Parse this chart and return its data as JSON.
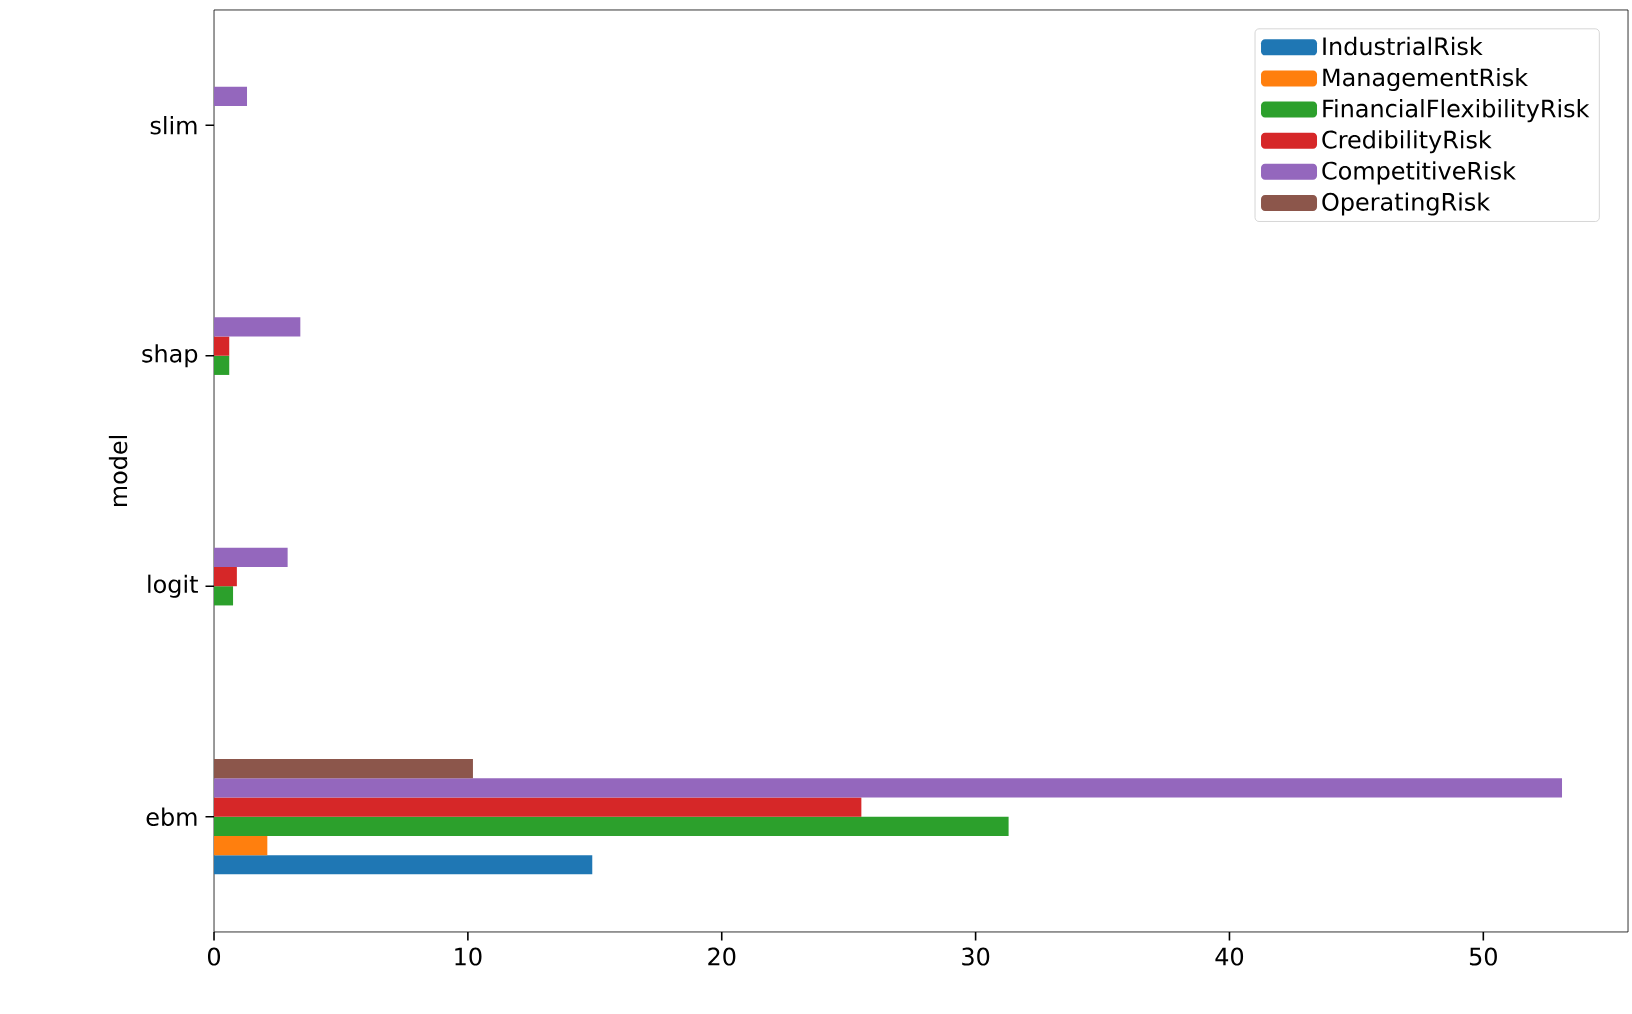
{
  "chart_data": {
    "type": "bar",
    "orientation": "horizontal",
    "ylabel": "model",
    "categories": [
      "slim",
      "shap",
      "logit",
      "ebm"
    ],
    "series": [
      {
        "name": "IndustrialRisk",
        "color": "#1f77b4",
        "values": [
          0,
          0,
          0,
          14.9
        ]
      },
      {
        "name": "ManagementRisk",
        "color": "#ff7f0e",
        "values": [
          0,
          0,
          0,
          2.1
        ]
      },
      {
        "name": "FinancialFlexibilityRisk",
        "color": "#2ca02c",
        "values": [
          0,
          0.6,
          0.75,
          31.3
        ]
      },
      {
        "name": "CredibilityRisk",
        "color": "#d62728",
        "values": [
          0,
          0.6,
          0.9,
          25.5
        ]
      },
      {
        "name": "CompetitiveRisk",
        "color": "#9467bd",
        "values": [
          1.3,
          3.4,
          2.9,
          53.1
        ]
      },
      {
        "name": "OperatingRisk",
        "color": "#8c564b",
        "values": [
          0,
          0,
          0,
          10.2
        ]
      }
    ],
    "xlim": [
      0,
      55.7
    ],
    "xticks": [
      0,
      10,
      20,
      30,
      40,
      50
    ],
    "legend": "top right",
    "grid": false
  }
}
